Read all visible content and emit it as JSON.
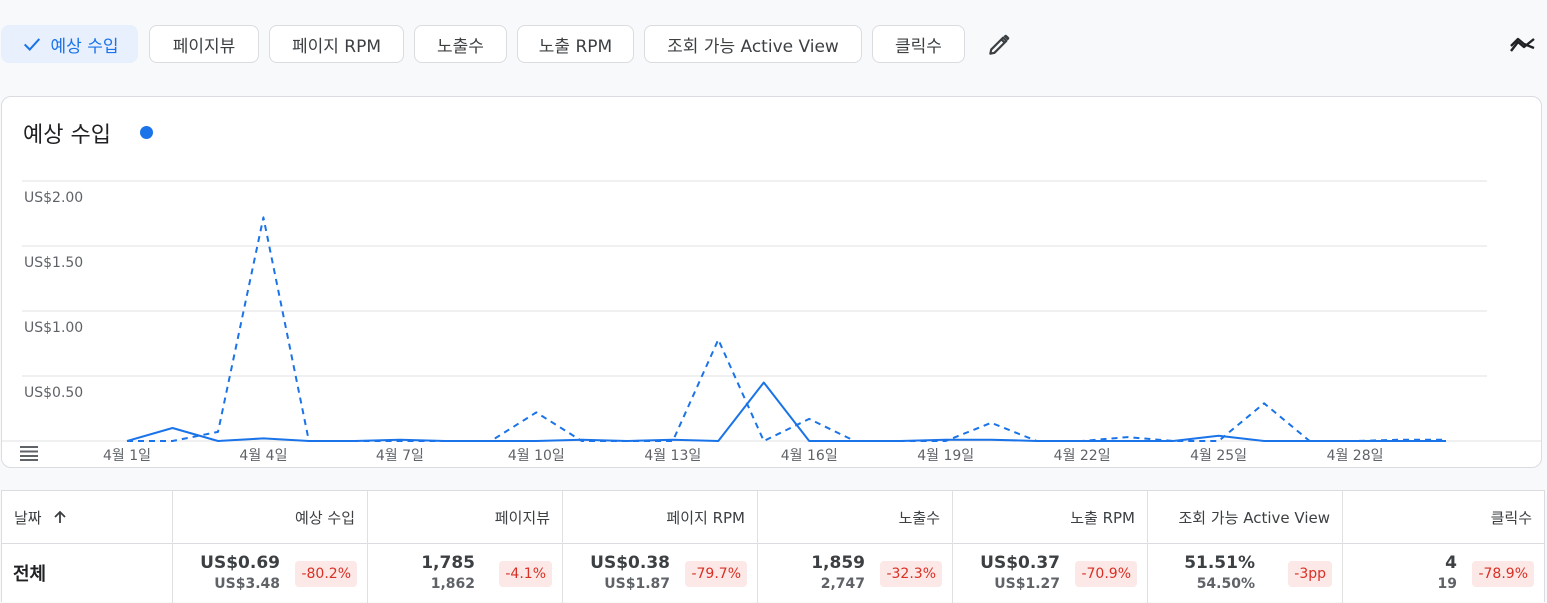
{
  "metric_chips": [
    {
      "label": "예상 수입",
      "selected": true
    },
    {
      "label": "페이지뷰",
      "selected": false
    },
    {
      "label": "페이지 RPM",
      "selected": false
    },
    {
      "label": "노출수",
      "selected": false
    },
    {
      "label": "노출 RPM",
      "selected": false
    },
    {
      "label": "조회 가능 Active View",
      "selected": false
    },
    {
      "label": "클릭수",
      "selected": false
    }
  ],
  "toolbar": {
    "edit_icon": "pencil-icon",
    "compare_icon": "trend-compare-icon"
  },
  "chart_card": {
    "title": "예상 수입",
    "legend_color": "#1a73e8",
    "menu_icon": "hamburger-menu-icon"
  },
  "chart_data": {
    "type": "line",
    "ylabel": "",
    "yticks": [
      "US$0.50",
      "US$1.00",
      "US$1.50",
      "US$2.00"
    ],
    "ylim": [
      0,
      2.0
    ],
    "x_tick_labels": [
      "4월 1일",
      "4월 4일",
      "4월 7일",
      "4월 10일",
      "4월 13일",
      "4월 16일",
      "4월 19일",
      "4월 22일",
      "4월 25일",
      "4월 28일"
    ],
    "x_tick_days": [
      1,
      4,
      7,
      10,
      13,
      16,
      19,
      22,
      25,
      28
    ],
    "days": [
      1,
      2,
      3,
      4,
      5,
      6,
      7,
      8,
      9,
      10,
      11,
      12,
      13,
      14,
      15,
      16,
      17,
      18,
      19,
      20,
      21,
      22,
      23,
      24,
      25,
      26,
      27,
      28,
      29,
      30
    ],
    "series": [
      {
        "style": "solid",
        "color": "#1a73e8",
        "values": [
          0.0,
          0.1,
          0.0,
          0.02,
          0.0,
          0.0,
          0.01,
          0.0,
          0.0,
          0.0,
          0.01,
          0.0,
          0.01,
          0.0,
          0.45,
          0.0,
          0.0,
          0.0,
          0.01,
          0.01,
          0.0,
          0.0,
          0.0,
          0.0,
          0.04,
          0.0,
          0.0,
          0.0,
          0.0,
          0.0
        ]
      },
      {
        "style": "dashed",
        "color": "#1a73e8",
        "values": [
          0.0,
          0.0,
          0.07,
          1.72,
          0.0,
          0.0,
          0.0,
          0.0,
          0.0,
          0.22,
          0.0,
          0.0,
          0.0,
          0.78,
          0.0,
          0.17,
          0.0,
          0.0,
          0.0,
          0.14,
          0.0,
          0.0,
          0.03,
          0.0,
          0.0,
          0.29,
          0.0,
          0.0,
          0.01,
          0.01
        ]
      }
    ],
    "grid": true
  },
  "table": {
    "headers": [
      "날짜",
      "예상 수입",
      "페이지뷰",
      "페이지 RPM",
      "노출수",
      "노출 RPM",
      "조회 가능 Active View",
      "클릭수"
    ],
    "sort_icon": "arrow-up-icon",
    "total_row": {
      "label": "전체",
      "cells": [
        {
          "current": "US$0.69",
          "previous": "US$3.48",
          "change": "-80.2%"
        },
        {
          "current": "1,785",
          "previous": "1,862",
          "change": "-4.1%"
        },
        {
          "current": "US$0.38",
          "previous": "US$1.87",
          "change": "-79.7%"
        },
        {
          "current": "1,859",
          "previous": "2,747",
          "change": "-32.3%"
        },
        {
          "current": "US$0.37",
          "previous": "US$1.27",
          "change": "-70.9%"
        },
        {
          "current": "51.51%",
          "previous": "54.50%",
          "change": "-3pp"
        },
        {
          "current": "4",
          "previous": "19",
          "change": "-78.9%"
        }
      ]
    },
    "badge_color": "#fce8e6",
    "badge_text_color": "#d93025"
  }
}
